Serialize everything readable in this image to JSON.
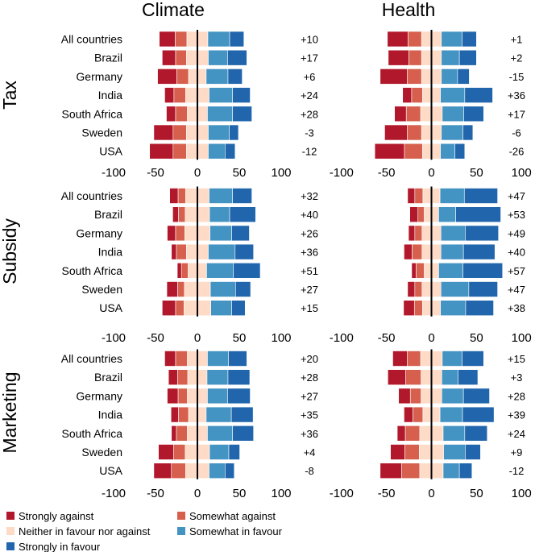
{
  "column_titles": [
    "Climate",
    "Health"
  ],
  "row_titles": [
    "Tax",
    "Subsidy",
    "Marketing"
  ],
  "legend": [
    {
      "label": "Strongly against",
      "color": "#b2182b"
    },
    {
      "label": "Somewhat against",
      "color": "#d6604d"
    },
    {
      "label": "Neither in favour nor against",
      "color": "#fddbc7"
    },
    {
      "label": "Somewhat in favour",
      "color": "#4393c3"
    },
    {
      "label": "Strongly in favour",
      "color": "#2166ac"
    }
  ],
  "chart_data": [
    {
      "type": "bar",
      "orientation": "horizontal-diverging-stacked",
      "domain": "Climate",
      "policy": "Tax",
      "categories": [
        "All countries",
        "Brazil",
        "Germany",
        "India",
        "South Africa",
        "Sweden",
        "USA"
      ],
      "xticks": [
        -100,
        -50,
        0,
        50,
        100
      ],
      "xlim": [
        -100,
        100
      ],
      "series": [
        {
          "name": "Strongly against",
          "values": [
            19,
            16,
            23,
            11,
            11,
            23,
            28
          ]
        },
        {
          "name": "Somewhat against",
          "values": [
            14,
            13,
            14,
            14,
            14,
            16,
            16
          ]
        },
        {
          "name": "Neither in favour nor against",
          "values": [
            25,
            26,
            21,
            28,
            24,
            26,
            26
          ]
        },
        {
          "name": "Somewhat in favour",
          "values": [
            26,
            23,
            26,
            28,
            30,
            25,
            20
          ]
        },
        {
          "name": "Strongly in favour",
          "values": [
            17,
            23,
            17,
            21,
            23,
            11,
            12
          ]
        }
      ],
      "net_labels": [
        "+10",
        "+17",
        "+6",
        "+24",
        "+28",
        "-3",
        "-12"
      ]
    },
    {
      "type": "bar",
      "orientation": "horizontal-diverging-stacked",
      "domain": "Health",
      "policy": "Tax",
      "categories": [
        "All countries",
        "Brazil",
        "Germany",
        "India",
        "South Africa",
        "Sweden",
        "USA"
      ],
      "xticks": [
        -100,
        -50,
        0,
        50,
        100
      ],
      "xlim": [
        -100,
        100
      ],
      "series": [
        {
          "name": "Strongly against",
          "values": [
            23,
            23,
            30,
            10,
            13,
            25,
            33
          ]
        },
        {
          "name": "Somewhat against",
          "values": [
            15,
            14,
            16,
            12,
            16,
            16,
            20
          ]
        },
        {
          "name": "Neither in favour nor against",
          "values": [
            22,
            22,
            22,
            20,
            24,
            22,
            20
          ]
        },
        {
          "name": "Somewhat in favour",
          "values": [
            23,
            20,
            18,
            27,
            24,
            24,
            16
          ]
        },
        {
          "name": "Strongly in favour",
          "values": [
            16,
            19,
            13,
            31,
            22,
            11,
            11
          ]
        }
      ],
      "net_labels": [
        "+1",
        "+2",
        "-15",
        "+36",
        "+17",
        "-6",
        "-26"
      ]
    },
    {
      "type": "bar",
      "orientation": "horizontal-diverging-stacked",
      "domain": "Climate",
      "policy": "Subsidy",
      "categories": [
        "All countries",
        "Brazil",
        "Germany",
        "India",
        "South Africa",
        "Sweden",
        "USA"
      ],
      "xticks": [
        -100,
        -50,
        0,
        50,
        100
      ],
      "xlim": [
        -100,
        100
      ],
      "series": [
        {
          "name": "Strongly against",
          "values": [
            10,
            7,
            10,
            6,
            5,
            13,
            16
          ]
        },
        {
          "name": "Somewhat against",
          "values": [
            9,
            8,
            11,
            12,
            8,
            8,
            10
          ]
        },
        {
          "name": "Neither in favour nor against",
          "values": [
            28,
            29,
            30,
            26,
            22,
            31,
            32
          ]
        },
        {
          "name": "Somewhat in favour",
          "values": [
            28,
            24,
            26,
            32,
            32,
            30,
            25
          ]
        },
        {
          "name": "Strongly in favour",
          "values": [
            23,
            31,
            21,
            22,
            32,
            18,
            16
          ]
        }
      ],
      "net_labels": [
        "+32",
        "+40",
        "+26",
        "+36",
        "+51",
        "+27",
        "+15"
      ]
    },
    {
      "type": "bar",
      "orientation": "horizontal-diverging-stacked",
      "domain": "Health",
      "policy": "Subsidy",
      "categories": [
        "All countries",
        "Brazil",
        "Germany",
        "India",
        "South Africa",
        "Sweden",
        "USA"
      ],
      "xticks": [
        -100,
        -50,
        0,
        50,
        100
      ],
      "xlim": [
        -100,
        100
      ],
      "series": [
        {
          "name": "Strongly against",
          "values": [
            8,
            9,
            7,
            9,
            5,
            8,
            12
          ]
        },
        {
          "name": "Somewhat against",
          "values": [
            9,
            7,
            8,
            11,
            9,
            8,
            9
          ]
        },
        {
          "name": "Neither in favour nor against",
          "values": [
            19,
            16,
            21,
            21,
            16,
            21,
            20
          ]
        },
        {
          "name": "Somewhat in favour",
          "values": [
            27,
            19,
            27,
            25,
            27,
            31,
            28
          ]
        },
        {
          "name": "Strongly in favour",
          "values": [
            37,
            50,
            37,
            35,
            44,
            32,
            31
          ]
        }
      ],
      "net_labels": [
        "+47",
        "+53",
        "+49",
        "+40",
        "+57",
        "+47",
        "+38"
      ]
    },
    {
      "type": "bar",
      "orientation": "horizontal-diverging-stacked",
      "domain": "Climate",
      "policy": "Marketing",
      "categories": [
        "All countries",
        "Brazil",
        "Germany",
        "India",
        "South Africa",
        "Sweden",
        "USA"
      ],
      "xticks": [
        -100,
        -50,
        0,
        50,
        100
      ],
      "xlim": [
        -100,
        100
      ],
      "series": [
        {
          "name": "Strongly against",
          "values": [
            13,
            11,
            13,
            9,
            6,
            18,
            21
          ]
        },
        {
          "name": "Somewhat against",
          "values": [
            14,
            12,
            11,
            12,
            13,
            14,
            17
          ]
        },
        {
          "name": "Neither in favour nor against",
          "values": [
            24,
            23,
            24,
            21,
            24,
            29,
            28
          ]
        },
        {
          "name": "Somewhat in favour",
          "values": [
            25,
            25,
            24,
            30,
            30,
            23,
            19
          ]
        },
        {
          "name": "Strongly in favour",
          "values": [
            22,
            26,
            27,
            26,
            25,
            13,
            11
          ]
        }
      ],
      "net_labels": [
        "+20",
        "+28",
        "+27",
        "+35",
        "+36",
        "+4",
        "-8"
      ]
    },
    {
      "type": "bar",
      "orientation": "horizontal-diverging-stacked",
      "domain": "Health",
      "policy": "Marketing",
      "categories": [
        "All countries",
        "Brazil",
        "Germany",
        "India",
        "South Africa",
        "Sweden",
        "USA"
      ],
      "xticks": [
        -100,
        -50,
        0,
        50,
        100
      ],
      "xlim": [
        -100,
        100
      ],
      "series": [
        {
          "name": "Strongly against",
          "values": [
            16,
            20,
            13,
            10,
            9,
            16,
            24
          ]
        },
        {
          "name": "Somewhat against",
          "values": [
            15,
            17,
            12,
            11,
            16,
            16,
            20
          ]
        },
        {
          "name": "Neither in favour nor against",
          "values": [
            24,
            23,
            23,
            19,
            26,
            27,
            26
          ]
        },
        {
          "name": "Somewhat in favour",
          "values": [
            22,
            18,
            24,
            25,
            24,
            24,
            18
          ]
        },
        {
          "name": "Strongly in favour",
          "values": [
            24,
            22,
            29,
            35,
            25,
            17,
            14
          ]
        }
      ],
      "net_labels": [
        "+15",
        "+3",
        "+28",
        "+39",
        "+24",
        "+9",
        "-12"
      ]
    }
  ]
}
